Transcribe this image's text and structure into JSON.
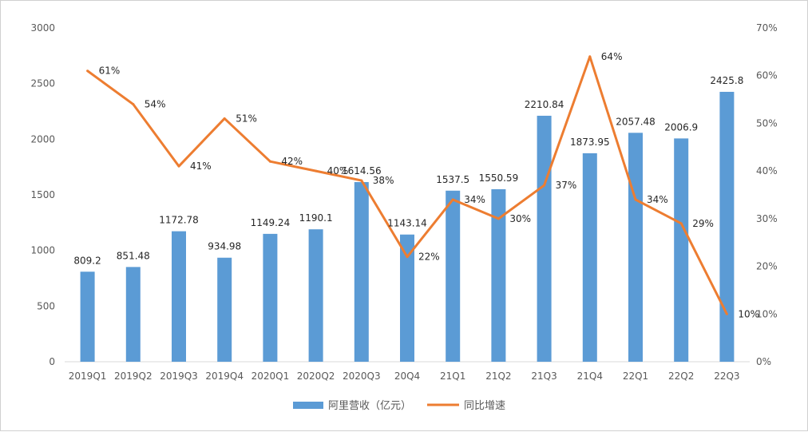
{
  "chart_data": {
    "type": "bar",
    "categories": [
      "2019Q1",
      "2019Q2",
      "2019Q3",
      "2019Q4",
      "2020Q1",
      "2020Q2",
      "2020Q3",
      "20Q4",
      "21Q1",
      "21Q2",
      "21Q3",
      "21Q4",
      "22Q1",
      "22Q2",
      "22Q3"
    ],
    "series": [
      {
        "name": "阿里营收（亿元）",
        "type": "bar",
        "axis": "left",
        "color": "#5b9bd5",
        "values": [
          809.2,
          851.48,
          1172.78,
          934.98,
          1149.24,
          1190.1,
          1614.56,
          1143.14,
          1537.5,
          1550.59,
          2210.84,
          1873.95,
          2057.48,
          2006.9,
          2425.8
        ],
        "labels": [
          "809.2",
          "851.48",
          "1172.78",
          "934.98",
          "1149.24",
          "1190.1",
          "1614.56",
          "1143.14",
          "1537.5",
          "1550.59",
          "2210.84",
          "1873.95",
          "2057.48",
          "2006.9",
          "2425.8"
        ]
      },
      {
        "name": "同比增速",
        "type": "line",
        "axis": "right",
        "color": "#ed7d31",
        "values": [
          61,
          54,
          41,
          51,
          42,
          40,
          38,
          22,
          34,
          30,
          37,
          64,
          34,
          29,
          10
        ],
        "labels": [
          "61%",
          "54%",
          "41%",
          "51%",
          "42%",
          "40%",
          "38%",
          "22%",
          "34%",
          "30%",
          "37%",
          "64%",
          "34%",
          "29%",
          "10%"
        ]
      }
    ],
    "left_axis": {
      "ylim": [
        0,
        3000
      ],
      "ticks": [
        "0",
        "500",
        "1000",
        "1500",
        "2000",
        "2500",
        "3000"
      ]
    },
    "right_axis": {
      "ylim": [
        0,
        70
      ],
      "ticks": [
        "0%",
        "10%",
        "20%",
        "30%",
        "40%",
        "50%",
        "60%",
        "70%"
      ]
    },
    "grid": false,
    "legend_position": "bottom"
  }
}
